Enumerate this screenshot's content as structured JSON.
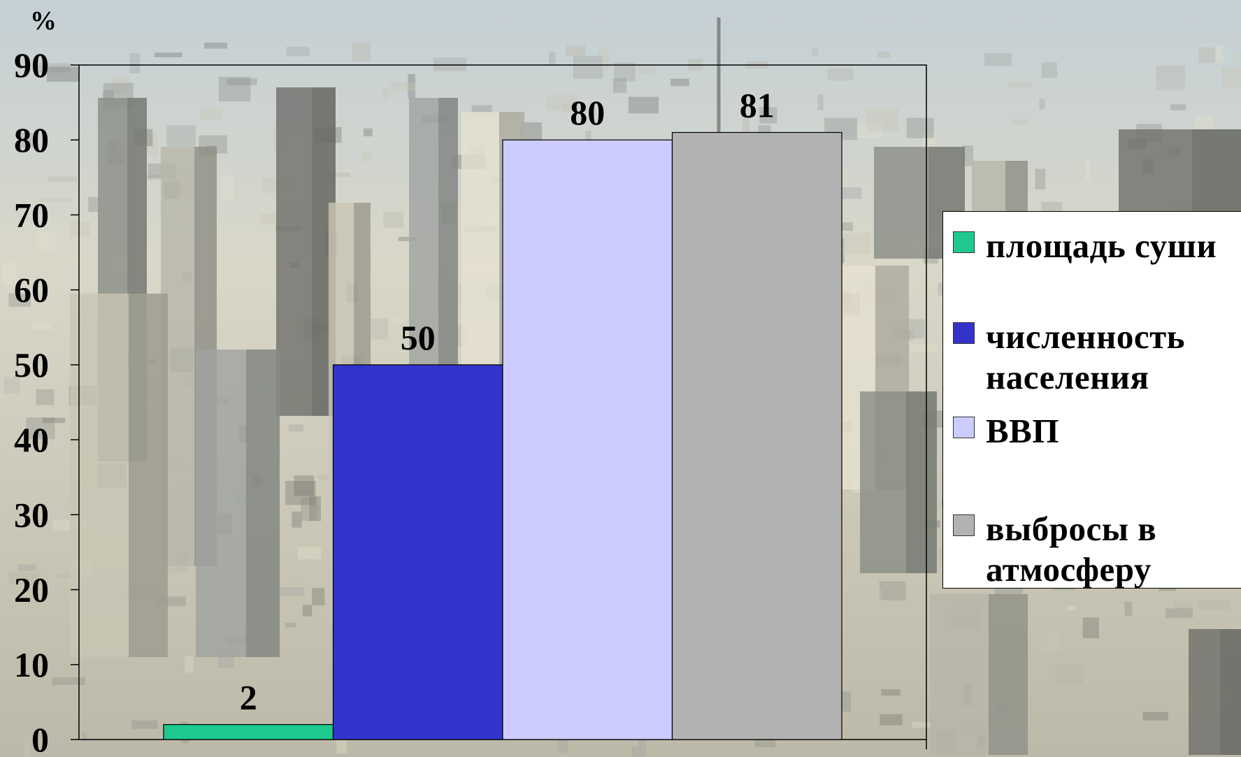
{
  "chart_data": {
    "type": "bar",
    "unit_label": "%",
    "ylim": [
      0,
      90
    ],
    "yticks": [
      0,
      10,
      20,
      30,
      40,
      50,
      60,
      70,
      80,
      90
    ],
    "grid": false,
    "legend_position": "right",
    "series": [
      {
        "name": "площадь суши",
        "value": 2,
        "color": "#1ec98f"
      },
      {
        "name": "численность населения",
        "value": 50,
        "color": "#3333cc"
      },
      {
        "name": "ВВП",
        "value": 80,
        "color": "#ccccff"
      },
      {
        "name": "выбросы в атмосферу",
        "value": 81,
        "color": "#b2b2b2"
      }
    ]
  },
  "legend": {
    "items": [
      {
        "lines": [
          "площадь суши"
        ],
        "color": "#1ec98f"
      },
      {
        "lines": [
          "численность",
          "населения"
        ],
        "color": "#3333cc"
      },
      {
        "lines": [
          "ВВП"
        ],
        "color": "#ccccff"
      },
      {
        "lines": [
          "выбросы в",
          "атмосферу"
        ],
        "color": "#b2b2b2"
      }
    ]
  },
  "background": {
    "description": "aerial city skyline photo",
    "sky_color": "#d9d7c8",
    "building_colors": [
      "#8a8d86",
      "#b6b5a9",
      "#6f6f6b",
      "#c9c6b4",
      "#9fa3a0",
      "#e6e1cf"
    ]
  }
}
